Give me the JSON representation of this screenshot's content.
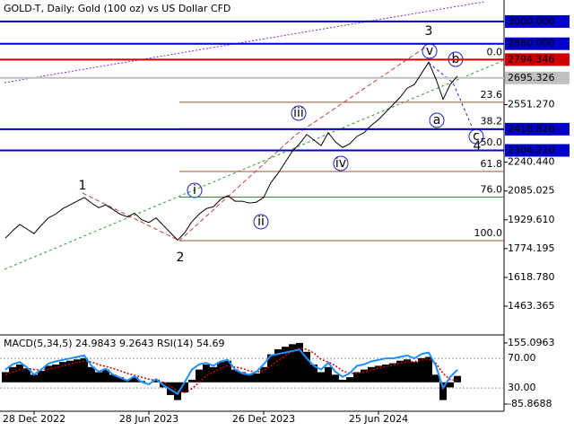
{
  "chart_data": [
    {
      "type": "line",
      "title": "GOLD-T, Daily:  Gold (100 oz) vs US Dollar CFD",
      "categories": [
        null,
        null,
        null,
        null,
        "28 Dec 2022",
        null,
        null,
        null,
        null,
        null,
        null,
        null,
        null,
        null,
        null,
        null,
        null,
        null,
        null,
        null,
        "28 Jun 2023",
        null,
        null,
        null,
        null,
        null,
        null,
        null,
        null,
        null,
        null,
        null,
        null,
        null,
        null,
        null,
        "26 Dec 2023",
        null,
        null,
        null,
        null,
        null,
        null,
        null,
        null,
        null,
        null,
        null,
        null,
        null,
        null,
        null,
        "25 Jun 2024",
        null,
        null,
        null,
        null,
        null,
        null,
        null,
        null,
        null,
        null,
        null
      ],
      "series": [
        {
          "color": "#000000",
          "values": [
            1830,
            1870,
            1905,
            1880,
            1855,
            1900,
            1940,
            1960,
            1990,
            2010,
            2030,
            2050,
            2020,
            1995,
            2010,
            1985,
            1960,
            1945,
            1965,
            1930,
            1915,
            1940,
            1900,
            1860,
            1820,
            1860,
            1920,
            1960,
            1990,
            2000,
            2040,
            2060,
            2030,
            2030,
            2020,
            2025,
            2050,
            2130,
            2180,
            2240,
            2300,
            2340,
            2390,
            2360,
            2330,
            2400,
            2350,
            2320,
            2340,
            2380,
            2400,
            2440,
            2470,
            2510,
            2550,
            2590,
            2640,
            2660,
            2720,
            2780,
            2690,
            2580,
            2660,
            2705
          ]
        }
      ],
      "ylim": [
        1313,
        3116
      ],
      "yticks": [
        {
          "value": 2551.27,
          "label": "2551.270"
        },
        {
          "value": 2240.44,
          "label": "2240.440"
        },
        {
          "value": 2085.025,
          "label": "2085.025"
        },
        {
          "value": 1929.61,
          "label": "1929.610"
        },
        {
          "value": 1774.195,
          "label": "1774.195"
        },
        {
          "value": 1618.78,
          "label": "1618.780"
        },
        {
          "value": 1463.365,
          "label": "1463.365"
        }
      ],
      "levels": [
        {
          "value": 3000,
          "label": "3000.000",
          "color": "#0000c8"
        },
        {
          "value": 2880,
          "label": "2880.000",
          "color": "#0000c8"
        },
        {
          "value": 2794.346,
          "label": "2794.346",
          "color": "#d00000"
        },
        {
          "value": 2695.326,
          "label": "2695.326",
          "color": "#c0c0c0"
        },
        {
          "value": 2418.826,
          "label": "2418.826",
          "color": "#0000c8"
        },
        {
          "value": 2304.21,
          "label": "2304.210",
          "color": "#0000c8"
        }
      ],
      "fib_levels": [
        {
          "label": "0.0",
          "value": 2794.3
        },
        {
          "label": "23.6",
          "value": 2564
        },
        {
          "label": "38.2",
          "value": 2421
        },
        {
          "label": "50.0",
          "value": 2305.5
        },
        {
          "label": "61.8",
          "value": 2190
        },
        {
          "label": "76.0",
          "value": 2052
        },
        {
          "label": "100.0",
          "value": 1817
        }
      ],
      "fib_color": "#a0522d",
      "annotations": [
        "1",
        "2",
        "3",
        "4",
        "i",
        "ii",
        "iii",
        "iv",
        "v",
        "a",
        "b",
        "c"
      ]
    },
    {
      "type": "bar",
      "title": "MACD(5,34,5) 24.9843 9.2643 RSI(14) 54.69",
      "series": [
        {
          "type": "bar",
          "color": "#000000",
          "values": [
            40,
            60,
            70,
            55,
            30,
            45,
            65,
            70,
            80,
            85,
            90,
            95,
            60,
            40,
            50,
            30,
            20,
            10,
            20,
            5,
            0,
            10,
            -20,
            -50,
            -70,
            -40,
            10,
            50,
            70,
            60,
            80,
            85,
            50,
            40,
            30,
            35,
            60,
            110,
            130,
            140,
            150,
            155,
            120,
            70,
            40,
            60,
            30,
            10,
            20,
            40,
            50,
            60,
            65,
            70,
            75,
            85,
            90,
            80,
            95,
            100,
            30,
            -70,
            -20,
            24.9843
          ]
        },
        {
          "type": "line",
          "color": "#d00000",
          "values": [
            30,
            40,
            50,
            55,
            50,
            48,
            52,
            58,
            65,
            72,
            78,
            84,
            80,
            70,
            62,
            55,
            45,
            35,
            28,
            20,
            12,
            8,
            0,
            -15,
            -35,
            -40,
            -25,
            0,
            25,
            40,
            55,
            65,
            60,
            55,
            45,
            40,
            45,
            65,
            85,
            105,
            120,
            135,
            130,
            115,
            90,
            80,
            65,
            45,
            35,
            35,
            40,
            48,
            55,
            62,
            68,
            75,
            82,
            82,
            87,
            92,
            75,
            35,
            10,
            9.2643
          ]
        },
        {
          "type": "line",
          "axis": "y2",
          "color": "#1e90ff",
          "values": [
            55,
            62,
            65,
            58,
            48,
            55,
            63,
            66,
            68,
            70,
            72,
            74,
            60,
            52,
            56,
            48,
            44,
            40,
            46,
            38,
            35,
            42,
            34,
            28,
            22,
            38,
            55,
            62,
            64,
            60,
            66,
            68,
            55,
            50,
            48,
            52,
            62,
            74,
            76,
            78,
            80,
            82,
            70,
            60,
            55,
            64,
            52,
            45,
            50,
            60,
            62,
            66,
            68,
            70,
            70,
            72,
            74,
            70,
            76,
            78,
            60,
            30,
            45,
            54.69
          ]
        }
      ],
      "ylim": [
        -114,
        183
      ],
      "yticks": [
        155.0963,
        -85.8688
      ],
      "y2lim": [
        -1.5,
        100.6
      ],
      "y2ticks": [
        {
          "value": 70,
          "label": "70.00"
        },
        {
          "value": 30,
          "label": "30.00"
        }
      ]
    }
  ]
}
